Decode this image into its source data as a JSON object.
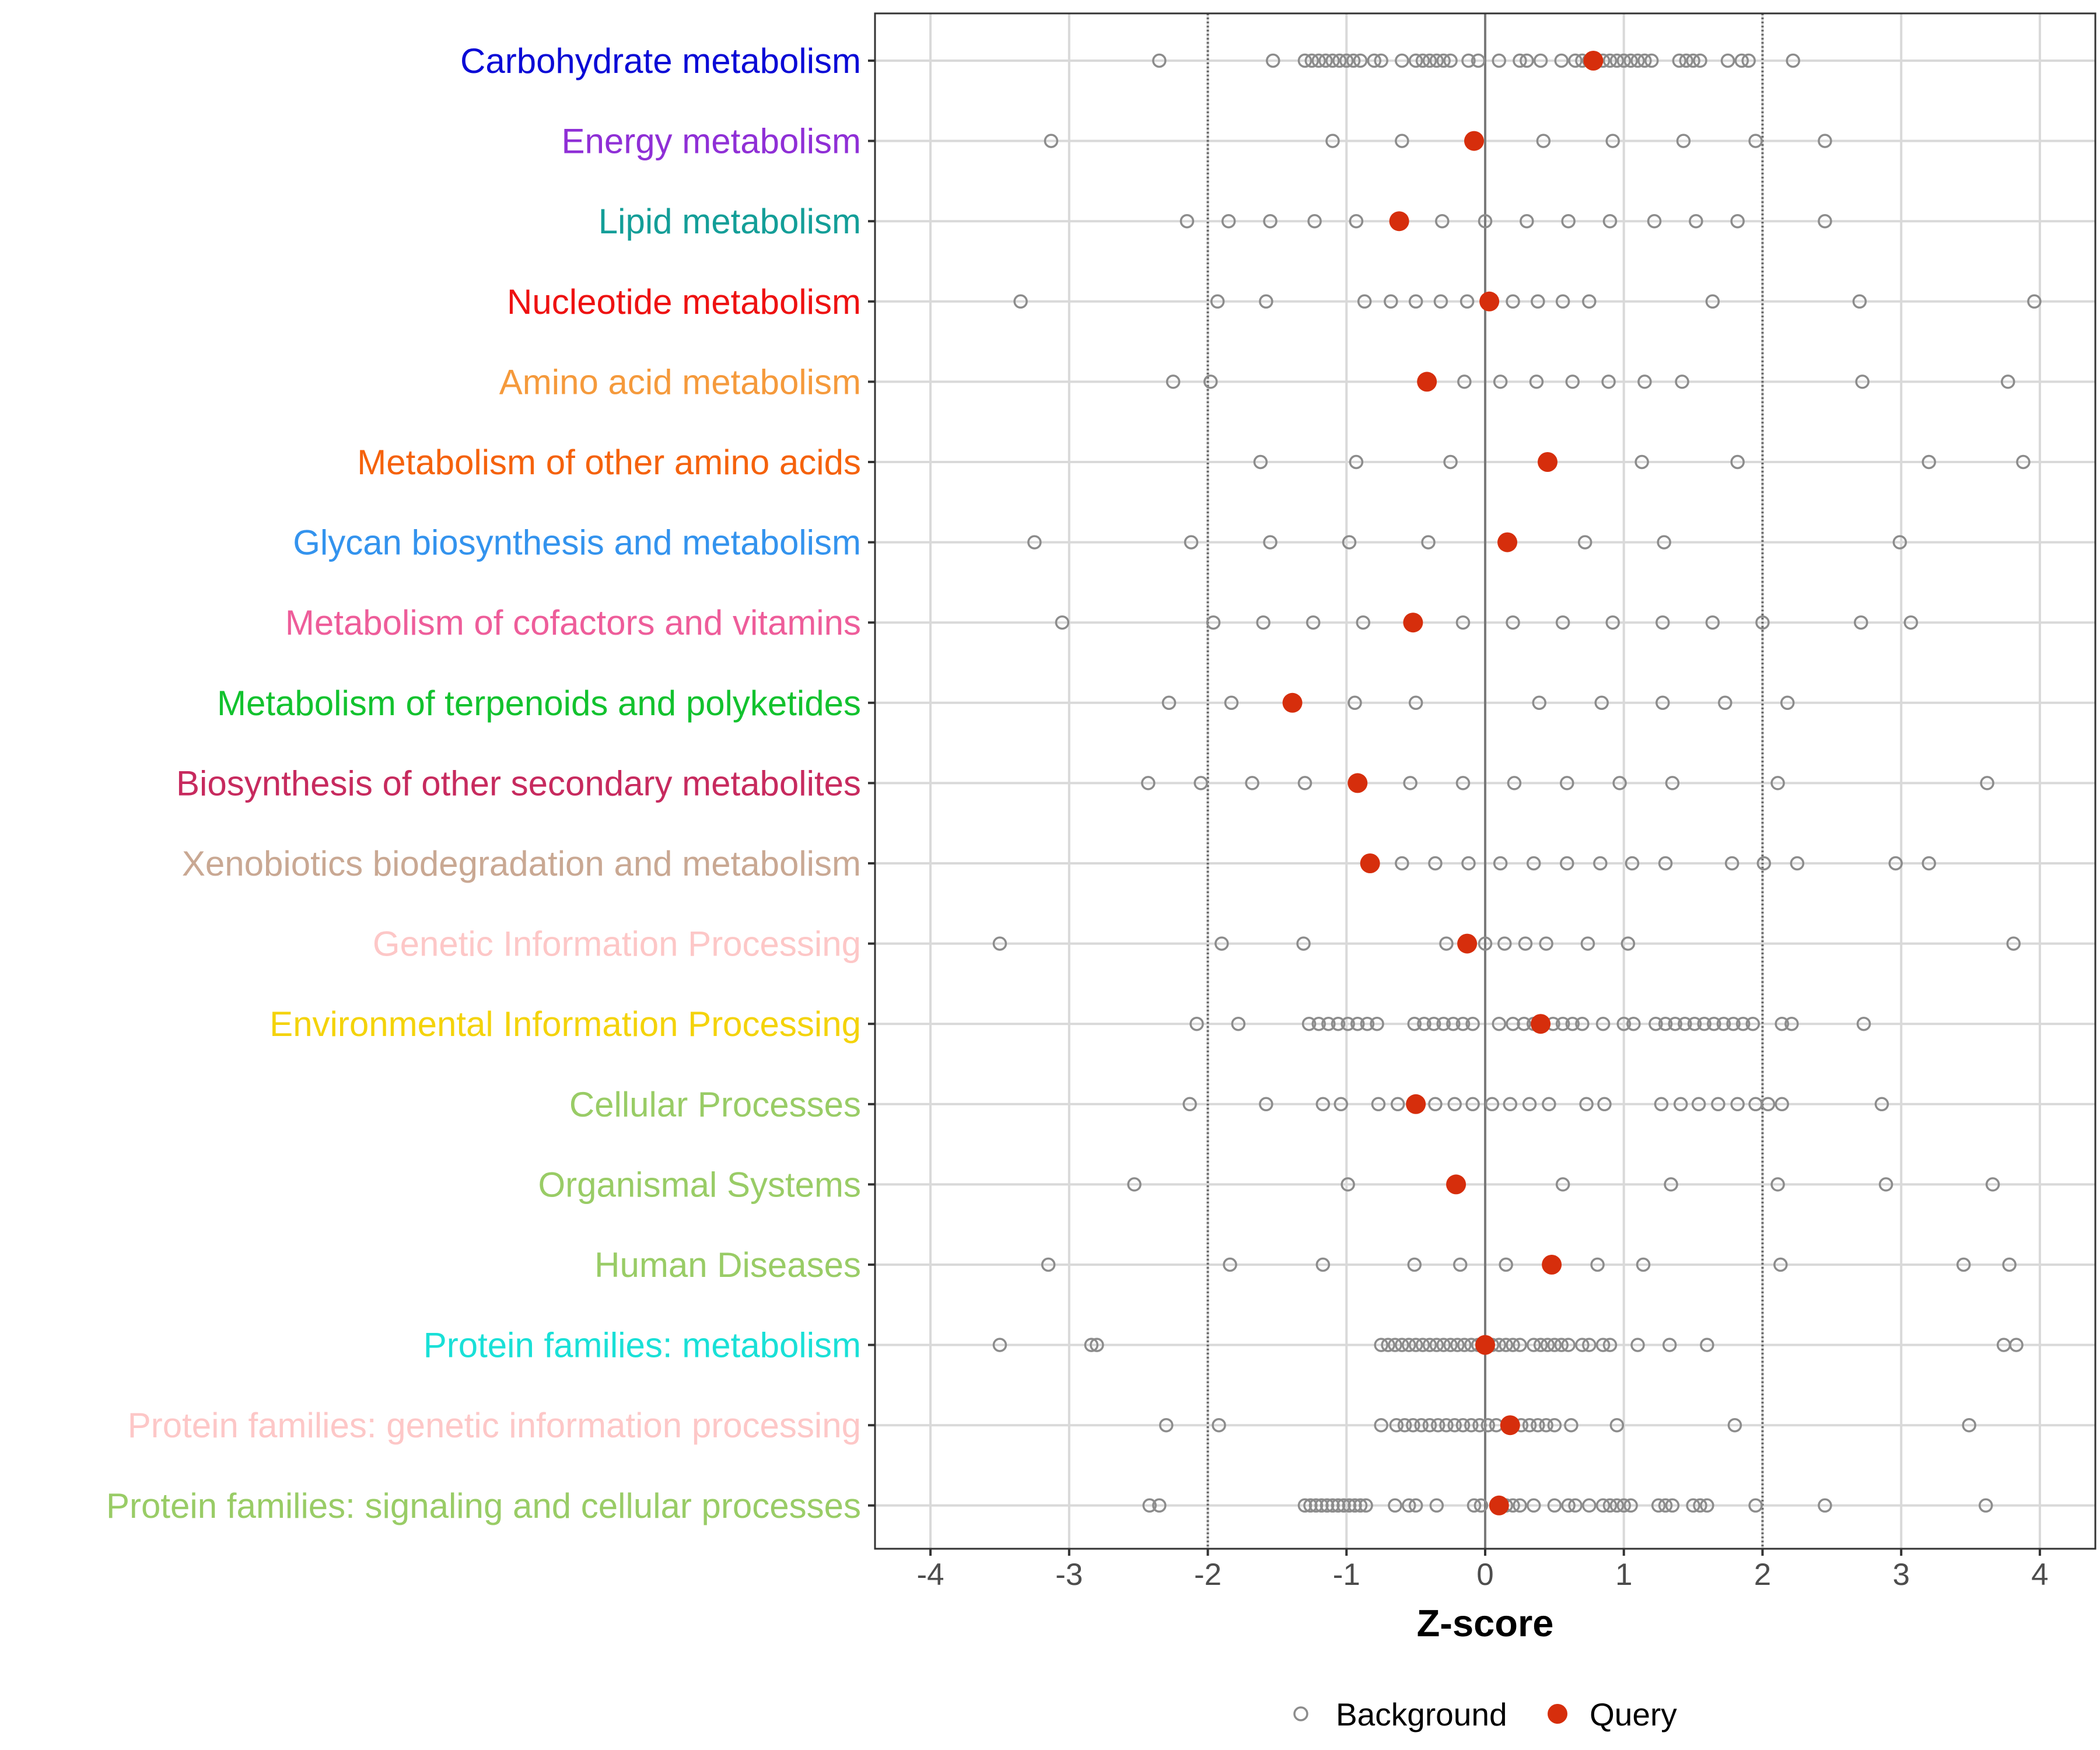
{
  "chart_data": {
    "type": "scatter",
    "xlabel": "Z-score",
    "ylabel": "",
    "xlim": [
      -4.4,
      4.4
    ],
    "xticks": [
      -4,
      -3,
      -2,
      -1,
      0,
      1,
      2,
      3,
      4
    ],
    "xtick_labels": [
      "-4",
      "-3",
      "-2",
      "-1",
      "0",
      "1",
      "2",
      "3",
      "4"
    ],
    "reference_lines": {
      "solid": [
        0
      ],
      "dotted": [
        -2,
        2
      ]
    },
    "legend": {
      "position": "bottom",
      "items": [
        {
          "name": "Background",
          "style": "open-circle",
          "color": "#8c8c8c"
        },
        {
          "name": "Query",
          "style": "filled-circle",
          "color": "#d62e0c"
        }
      ]
    },
    "categories": [
      {
        "label": "Carbohydrate metabolism",
        "color": "#0a0ad6",
        "query": 0.78,
        "background": [
          -2.35,
          -1.53,
          -1.3,
          -1.25,
          -1.2,
          -1.15,
          -1.1,
          -1.05,
          -1.0,
          -0.95,
          -0.9,
          -0.8,
          -0.75,
          -0.6,
          -0.5,
          -0.45,
          -0.4,
          -0.35,
          -0.3,
          -0.25,
          -0.12,
          -0.05,
          0.1,
          0.25,
          0.3,
          0.4,
          0.55,
          0.65,
          0.7,
          0.75,
          0.85,
          0.9,
          0.95,
          1.0,
          1.05,
          1.1,
          1.15,
          1.2,
          1.4,
          1.45,
          1.5,
          1.55,
          1.75,
          1.85,
          1.9,
          2.22
        ]
      },
      {
        "label": "Energy metabolism",
        "color": "#8f2fd6",
        "query": -0.08,
        "background": [
          -3.13,
          -1.1,
          -0.6,
          0.42,
          0.92,
          1.43,
          1.95,
          2.45
        ]
      },
      {
        "label": "Lipid metabolism",
        "color": "#139e98",
        "query": -0.62,
        "background": [
          -2.15,
          -1.85,
          -1.55,
          -1.23,
          -0.93,
          -0.31,
          0.0,
          0.3,
          0.6,
          0.9,
          1.22,
          1.52,
          1.82,
          2.45
        ]
      },
      {
        "label": "Nucleotide metabolism",
        "color": "#ee1111",
        "query": 0.03,
        "background": [
          -3.35,
          -1.93,
          -1.58,
          -0.87,
          -0.68,
          -0.5,
          -0.32,
          -0.13,
          0.2,
          0.38,
          0.56,
          0.75,
          1.64,
          2.7,
          3.96
        ]
      },
      {
        "label": "Amino acid metabolism",
        "color": "#f59a3c",
        "query": -0.42,
        "background": [
          -2.25,
          -1.98,
          -0.15,
          0.11,
          0.37,
          0.63,
          0.89,
          1.15,
          1.42,
          2.72,
          3.77
        ]
      },
      {
        "label": "Metabolism of other amino acids",
        "color": "#f5620c",
        "query": 0.45,
        "background": [
          -1.62,
          -0.93,
          -0.25,
          1.13,
          1.82,
          3.2,
          3.88
        ]
      },
      {
        "label": "Glycan biosynthesis and metabolism",
        "color": "#3393ee",
        "query": 0.16,
        "background": [
          -3.25,
          -2.12,
          -1.55,
          -0.98,
          -0.41,
          0.72,
          1.29,
          2.99
        ]
      },
      {
        "label": "Metabolism of cofactors and vitamins",
        "color": "#ee5d9a",
        "query": -0.52,
        "background": [
          -3.05,
          -1.96,
          -1.6,
          -1.24,
          -0.88,
          -0.16,
          0.2,
          0.56,
          0.92,
          1.28,
          1.64,
          2.0,
          2.71,
          3.07
        ]
      },
      {
        "label": "Metabolism of terpenoids and polyketides",
        "color": "#12c22e",
        "query": -1.39,
        "background": [
          -2.28,
          -1.83,
          -0.94,
          -0.5,
          0.39,
          0.84,
          1.28,
          1.73,
          2.18
        ]
      },
      {
        "label": "Biosynthesis of other secondary metabolites",
        "color": "#c72a5e",
        "query": -0.92,
        "background": [
          -2.43,
          -2.05,
          -1.68,
          -1.3,
          -0.54,
          -0.16,
          0.21,
          0.59,
          0.97,
          1.35,
          2.11,
          3.62
        ]
      },
      {
        "label": "Xenobiotics biodegradation and metabolism",
        "color": "#c9a893",
        "query": -0.83,
        "background": [
          -0.6,
          -0.36,
          -0.12,
          0.11,
          0.35,
          0.59,
          0.83,
          1.06,
          1.3,
          1.78,
          2.01,
          2.25,
          2.96,
          3.2
        ]
      },
      {
        "label": "Genetic Information Processing",
        "color": "#fdc7c7",
        "query": -0.13,
        "background": [
          -3.5,
          -1.9,
          -1.31,
          -0.28,
          0.0,
          0.14,
          0.29,
          0.44,
          0.74,
          1.03,
          3.81
        ]
      },
      {
        "label": "Environmental Information Processing",
        "color": "#f4d30a",
        "query": 0.4,
        "background": [
          -2.08,
          -1.78,
          -1.27,
          -1.2,
          -1.13,
          -1.06,
          -0.99,
          -0.92,
          -0.85,
          -0.78,
          -0.51,
          -0.44,
          -0.37,
          -0.3,
          -0.23,
          -0.16,
          -0.09,
          0.1,
          0.2,
          0.28,
          0.35,
          0.49,
          0.56,
          0.63,
          0.7,
          0.85,
          1.0,
          1.07,
          1.23,
          1.3,
          1.37,
          1.44,
          1.51,
          1.58,
          1.65,
          1.72,
          1.79,
          1.86,
          1.93,
          2.14,
          2.21,
          2.73
        ]
      },
      {
        "label": "Cellular Processes",
        "color": "#99cc66",
        "query": -0.5,
        "background": [
          -2.13,
          -1.58,
          -1.17,
          -1.04,
          -0.77,
          -0.63,
          -0.36,
          -0.22,
          -0.09,
          0.05,
          0.18,
          0.32,
          0.46,
          0.73,
          0.86,
          1.27,
          1.41,
          1.54,
          1.68,
          1.82,
          1.95,
          2.04,
          2.14,
          2.86
        ]
      },
      {
        "label": "Organismal Systems",
        "color": "#99cc66",
        "query": -0.21,
        "background": [
          -2.53,
          -0.99,
          0.56,
          1.34,
          2.11,
          2.89,
          3.66
        ]
      },
      {
        "label": "Human Diseases",
        "color": "#99cc66",
        "query": 0.48,
        "background": [
          -3.15,
          -1.84,
          -1.17,
          -0.51,
          -0.18,
          0.15,
          0.81,
          1.14,
          2.13,
          3.45,
          3.78
        ]
      },
      {
        "label": "Protein families: metabolism",
        "color": "#19e0d7",
        "query": 0.0,
        "background": [
          -3.5,
          -2.84,
          -2.8,
          -0.75,
          -0.7,
          -0.65,
          -0.6,
          -0.55,
          -0.5,
          -0.45,
          -0.4,
          -0.35,
          -0.3,
          -0.25,
          -0.2,
          -0.15,
          -0.1,
          -0.05,
          0.05,
          0.1,
          0.15,
          0.2,
          0.25,
          0.35,
          0.4,
          0.45,
          0.5,
          0.55,
          0.6,
          0.7,
          0.75,
          0.85,
          0.9,
          1.1,
          1.33,
          1.6,
          3.74,
          3.83
        ]
      },
      {
        "label": "Protein families: genetic information processing",
        "color": "#fdc7c7",
        "query": 0.18,
        "background": [
          -2.3,
          -1.92,
          -0.75,
          -0.64,
          -0.58,
          -0.52,
          -0.46,
          -0.4,
          -0.34,
          -0.28,
          -0.22,
          -0.16,
          -0.1,
          -0.04,
          0.02,
          0.08,
          0.26,
          0.32,
          0.38,
          0.44,
          0.5,
          0.62,
          0.95,
          1.8,
          3.49
        ]
      },
      {
        "label": "Protein families: signaling and cellular processes",
        "color": "#99cc66",
        "query": 0.1,
        "background": [
          -2.42,
          -2.35,
          -1.3,
          -1.26,
          -1.22,
          -1.18,
          -1.14,
          -1.1,
          -1.06,
          -1.02,
          -0.98,
          -0.94,
          -0.9,
          -0.86,
          -0.65,
          -0.55,
          -0.5,
          -0.35,
          -0.08,
          -0.03,
          0.15,
          0.2,
          0.25,
          0.35,
          0.5,
          0.6,
          0.65,
          0.75,
          0.85,
          0.9,
          0.95,
          1.0,
          1.05,
          1.25,
          1.3,
          1.35,
          1.5,
          1.55,
          1.6,
          1.95,
          2.45,
          3.61
        ]
      }
    ]
  }
}
